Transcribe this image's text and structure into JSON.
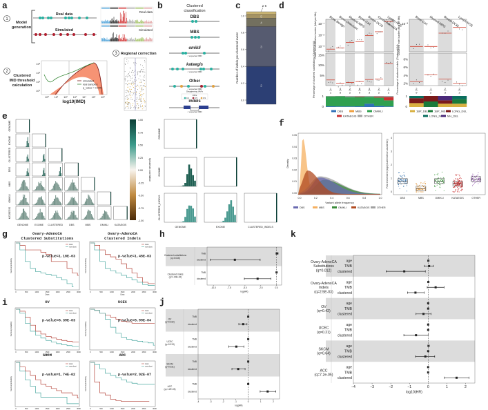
{
  "panel_labels": [
    "a",
    "b",
    "c",
    "d",
    "e",
    "f",
    "g",
    "h",
    "i",
    "j",
    "k"
  ],
  "colors": {
    "teal": "#2ab0a0",
    "red": "#b02030",
    "orange": "#f0a060",
    "gray_band": "#dcdcdc",
    "km_red": "#b5443a",
    "km_teal": "#4aa8a0"
  },
  "a": {
    "step1": "1",
    "step1_label": [
      "Model",
      "generation"
    ],
    "real_data": "Real data",
    "simulated": "Simulated",
    "step2": "2",
    "step2_label": [
      "Clustered",
      "IMD threshold",
      "calculation"
    ],
    "imd_xlabel": "log10(IMD)",
    "imd_xticks": [
      "10⁰",
      "10¹",
      "10²",
      "10³",
      "10⁴",
      "10⁵",
      "10⁶"
    ],
    "imd_yticks": [
      "10³",
      "10²",
      "10¹",
      "10⁰"
    ],
    "imd_legend": [
      "simulated",
      "real samples",
      "q_value = 0.005"
    ],
    "step3": "3",
    "step3_label": "Regional correction"
  },
  "b": {
    "title": [
      "Clustered",
      "classification"
    ],
    "items": [
      {
        "label": "DBS",
        "note": ""
      },
      {
        "label": "MBS",
        "note": ""
      },
      {
        "label": "omikli",
        "note": "< expected IMD"
      },
      {
        "label": "kataegis",
        "note": "< expected IMD"
      },
      {
        "label": "Other",
        "note": "< expected IMD",
        "note2": "Disagreeing VAFs"
      },
      {
        "label": "indels",
        "note": "< expected IMD"
      }
    ],
    "vaf_legend": {
      "title": "VAFs",
      "values": [
        "0.2",
        "0.5",
        "0.9"
      ]
    }
  },
  "c": {
    "ylabel": "Number of indels per clustered event",
    "yticks": [
      "1.0",
      "0.8",
      "0.6",
      "0.4",
      "0.2",
      "0.0"
    ],
    "segments": [
      {
        "label": "2",
        "fraction": 0.41,
        "color": "#2c3f74"
      },
      {
        "label": "3",
        "fraction": 0.43,
        "color": "#565b70"
      },
      {
        "label": "4",
        "fraction": 0.09,
        "color": "#73705f"
      },
      {
        "label": "5",
        "fraction": 0.04,
        "color": "#a59363"
      },
      {
        "label": "",
        "fraction": 0.03,
        "color": "#c9b473"
      }
    ],
    "top_label": "≥ 6"
  },
  "d": {
    "left": {
      "cancers": [
        "Bone-Benign",
        "Bone-Osteosarc",
        "Myeloid-MDS",
        "Bone-Cart",
        "Breast-DCIS",
        "Cervix-AdenoCA",
        "Lymph-NOS"
      ],
      "fractions": [
        [
          "1",
          "1"
        ],
        [
          "4",
          "5"
        ],
        [
          "2",
          "2"
        ],
        [
          "8",
          "9"
        ],
        [
          "3",
          "3"
        ],
        [
          "2",
          "2"
        ],
        [
          "2",
          "2"
        ]
      ],
      "burden_ylabel": "Clustered substitution burden (Mut per Mb)",
      "burden_yticks": [
        "10⁻¹",
        "10⁻²",
        "10⁻³"
      ],
      "burden_median": [
        0.0011,
        0.0014,
        0.0045,
        0.0055,
        0.02,
        0.045,
        0.4
      ],
      "pct_ylabel": "Percentage of clustered substitutions (Clustered/All)",
      "pct_yticks": [
        "15%",
        "10%",
        "5%"
      ],
      "pct_median": [
        2.8,
        1.2,
        1.5,
        2.0,
        3.0,
        3.2,
        10.8
      ],
      "stack_yticks": [
        "1",
        "0"
      ],
      "stack_classes": [
        "DBS",
        "MBS",
        "OMIKLI",
        "KATAEGIS",
        "OTHER"
      ],
      "stack_colors": [
        "#3070b8",
        "#f0a040",
        "#30a050",
        "#c83030",
        "#a0a0a0"
      ],
      "stack": [
        [
          0.06,
          0,
          0.9,
          0,
          0.04
        ],
        [
          0.05,
          0,
          0.92,
          0,
          0.03
        ],
        [
          0.05,
          0,
          0.85,
          0,
          0.1
        ],
        [
          0.06,
          0,
          0.84,
          0.04,
          0.06
        ],
        [
          0.3,
          0,
          0.62,
          0,
          0.08
        ],
        [
          0.1,
          0,
          0.75,
          0.08,
          0.07
        ],
        [
          0.05,
          0,
          0.55,
          0.3,
          0.1
        ]
      ]
    },
    "right": {
      "cancers": [
        "Bone-Cart",
        "Myeloid-MDS",
        "Breast-DCIS",
        "Lymph-NOS"
      ],
      "fractions": [
        [
          "2",
          "9"
        ],
        [
          "1",
          "2"
        ],
        [
          "2",
          "3"
        ],
        [
          "2",
          "2"
        ]
      ],
      "burden_ylabel": "Clustered indel burden (Mut per Mb)",
      "burden_yticks": [
        "10⁻³"
      ],
      "burden_median": [
        0.0006,
        0.0006,
        0.003,
        0.006
      ],
      "pct_ylabel": "Percentage of clustered indels (Clustered/All)",
      "pct_yticks": [
        "8%",
        "6%",
        "4%",
        "2%"
      ],
      "pct_median": [
        2.5,
        4.2,
        3.1,
        2.1
      ],
      "stack_yticks": [
        "1",
        "0"
      ],
      "stack_classes": [
        "1BP_DEL",
        "1BP_INS",
        "LONG_DEL",
        "LONG_INS",
        "MH_DEL"
      ],
      "stack_colors": [
        "#d8b040",
        "#1a7a3a",
        "#7a1a1a",
        "#0a6e5e",
        "#4a2a7a"
      ],
      "stack": [
        [
          0.35,
          0,
          0.45,
          0.2,
          0
        ],
        [
          0,
          0.5,
          0.5,
          0,
          0
        ],
        [
          0.3,
          0,
          0.3,
          0,
          0.4
        ],
        [
          0.3,
          0.4,
          0,
          0.3,
          0
        ]
      ]
    }
  },
  "e": {
    "labels": [
      "GENOME",
      "EXOME",
      "CLUSTERED",
      "DBS",
      "MBS",
      "OMIKLI",
      "KATAEGIS"
    ],
    "colorbar_ticks": [
      "1.00",
      "0.75",
      "0.50",
      "0.25",
      "0.00",
      "-0.25",
      "-0.50",
      "-0.75",
      "-1.00"
    ],
    "colorbar_label": "Spearman correlation",
    "right_labels": [
      "GENOME",
      "EXOME",
      "CLUSTERED_INDELS"
    ]
  },
  "f": {
    "density": {
      "xlabel": "Variant allele frequency",
      "ylabel": "Density",
      "xticks": [
        "0.0",
        "0.2",
        "0.4",
        "0.6",
        "0.8",
        "1.0"
      ],
      "yticks": [
        "0.05",
        "0.04",
        "0.03",
        "0.02",
        "0.01",
        "0.00"
      ],
      "classes": [
        "DBS",
        "MBS",
        "OMIKLI",
        "KATAEGIS",
        "OTHER"
      ],
      "colors": [
        "#6a6ab0",
        "#f5b060",
        "#3a8a3a",
        "#b04a20",
        "#a0a0a0"
      ]
    },
    "box": {
      "ylabel": "Fold enrichment (log2(clustered/non-clustered))",
      "yticks": [
        "4",
        "3",
        "2",
        "1",
        "0"
      ],
      "categories": [
        "DBS",
        "MBS",
        "OMIKLI",
        "KATAEGIS",
        "OTHER"
      ],
      "colors": [
        "#2a6aa8",
        "#e08a20",
        "#3a9a3a",
        "#c82a2a",
        "#8a4aa8"
      ],
      "medians": [
        0.85,
        0.3,
        0.85,
        0.65,
        1.0
      ]
    }
  },
  "km": {
    "times": [
      0,
      250,
      500,
      750,
      1000,
      1250,
      1500,
      1750,
      2000,
      2250,
      2500,
      2750,
      3000
    ],
    "xticks": [
      "0",
      "500",
      "1000",
      "1500",
      "2000",
      "2500",
      "3000"
    ],
    "ylabel": "Survival probability",
    "xlabel": "Days",
    "legend": [
      "clust",
      "non-clust"
    ],
    "plots": [
      {
        "title": [
          "Ovary-AdenoCA",
          "Clustered Substitutions"
        ],
        "pvalue": "p-value=1.18E-03",
        "red": [
          1,
          0.95,
          0.85,
          0.85,
          0.85,
          0.8,
          0.75,
          0.6,
          0.6,
          0.6,
          0.45,
          0.35,
          0.3
        ],
        "teal": [
          1,
          0.85,
          0.6,
          0.45,
          0.38,
          0.35,
          0.32,
          0.3,
          0.25,
          0.2,
          0.12,
          0.05,
          null
        ]
      },
      {
        "title": [
          "Ovary-AdenoCA",
          "Clustered Indels"
        ],
        "pvalue": "p-value=1.45E-03",
        "red": [
          1,
          0.95,
          0.85,
          0.75,
          0.7,
          0.65,
          0.55,
          0.45,
          0.35,
          0.25,
          0.15,
          0.12,
          0.12
        ],
        "teal": [
          1,
          0.85,
          0.6,
          0.45,
          0.4,
          0.35,
          0.3,
          0.25,
          0.2,
          0.15,
          0.1,
          0.08,
          0.08
        ]
      },
      {
        "title": [
          "OV"
        ],
        "pvalue": "p-value=6.39E-03",
        "red": [
          1,
          0.95,
          0.8,
          0.6,
          0.45,
          0.38,
          0.32,
          0.28,
          0.25,
          0.22,
          0.2,
          0.18,
          0.18
        ],
        "teal": [
          1,
          0.9,
          0.65,
          0.45,
          0.35,
          0.28,
          0.22,
          0.18,
          0.14,
          0.11,
          0.09,
          0.07,
          0.07
        ]
      },
      {
        "title": [
          "UCEC"
        ],
        "pvalue": "p-value=5.99E-04",
        "red": [
          1,
          0.97,
          0.9,
          0.85,
          0.8,
          0.75,
          0.7,
          0.68,
          0.65,
          0.65,
          0.65,
          0.65,
          0.65
        ],
        "teal": [
          1,
          0.97,
          0.9,
          0.75,
          0.55,
          0.4,
          0.3,
          0.25,
          0.22,
          0.2,
          0.18,
          0.16,
          0.1
        ]
      },
      {
        "title": [
          "SKCM"
        ],
        "pvalue": "p-value=1.74E-02",
        "red": [
          1,
          0.9,
          0.8,
          0.7,
          0.6,
          0.5,
          0.45,
          0.4,
          0.35,
          0.3,
          0.3,
          0.25,
          0.18
        ],
        "teal": [
          1,
          0.8,
          0.6,
          0.45,
          0.3,
          0.2,
          0.2,
          0.2,
          0.2,
          0.2,
          0.05,
          0.05,
          0.05
        ]
      },
      {
        "title": [
          "ACC"
        ],
        "pvalue": "p-value=2.92E-07",
        "red": [
          1,
          0.55,
          0.3,
          0.25,
          0.15,
          0.12,
          0.1,
          0.1,
          0.1,
          0.1,
          0.1,
          0.1,
          null
        ],
        "teal": [
          1,
          0.95,
          0.85,
          0.75,
          0.7,
          0.65,
          0.6,
          0.55,
          0.52,
          0.5,
          0.5,
          0.5,
          0.5
        ]
      }
    ]
  },
  "h": {
    "xlabel": "log(HR)",
    "xlim": [
      -11,
      0.8
    ],
    "xticks": [
      -10,
      -7.5,
      -5,
      -2.5,
      0
    ],
    "xtick_labels": [
      "-10.0",
      "-7.5",
      "-5.0",
      "-2.5",
      "0.0"
    ],
    "groups": [
      {
        "label": [
          "Clustered substitutions",
          "(q=0.016)"
        ],
        "rows": [
          {
            "name": "TMB",
            "hr": 0.05,
            "lo": -0.1,
            "hi": 0.25
          },
          {
            "name": "clustered",
            "hr": -6.6,
            "lo": -10.5,
            "hi": -2.6
          }
        ]
      },
      {
        "label": [
          "Clustered indels",
          "(q=1.00E-02)"
        ],
        "rows": [
          {
            "name": "TMB",
            "hr": 0.0,
            "lo": 0.0,
            "hi": 0.0
          },
          {
            "name": "clustered",
            "hr": -3.0,
            "lo": -5.1,
            "hi": -0.9
          }
        ]
      }
    ]
  },
  "j": {
    "xlabel": "log(HR)",
    "xlim": [
      -4,
      2.5
    ],
    "xticks": [
      -4,
      -3,
      -2,
      -1,
      0,
      1,
      2
    ],
    "xtick_labels": [
      "-4",
      "-3",
      "-2",
      "-1",
      "0",
      "1",
      "2"
    ],
    "groups": [
      {
        "label": [
          "OV",
          "(q=0.032)"
        ],
        "rows": [
          {
            "name": "TMB",
            "hr": 0,
            "lo": 0,
            "hi": 0
          },
          {
            "name": "clustered",
            "hr": -0.4,
            "lo": -0.75,
            "hi": -0.1
          }
        ]
      },
      {
        "label": [
          "UCEC",
          "(q=0.013)"
        ],
        "rows": [
          {
            "name": "TMB",
            "hr": 0,
            "lo": 0,
            "hi": 0
          },
          {
            "name": "clustered",
            "hr": -0.95,
            "lo": -1.55,
            "hi": -0.35
          }
        ]
      },
      {
        "label": [
          "SKCM",
          "(q=0.031)"
        ],
        "rows": [
          {
            "name": "TMB",
            "hr": 0,
            "lo": 0,
            "hi": 0
          },
          {
            "name": "clustered",
            "hr": -0.8,
            "lo": -1.3,
            "hi": -0.25
          }
        ]
      },
      {
        "label": [
          "ACC",
          "(q=1.2E-03)"
        ],
        "rows": [
          {
            "name": "TMB",
            "hr": 0,
            "lo": 0,
            "hi": 0
          },
          {
            "name": "clustered",
            "hr": 1.55,
            "lo": 0.95,
            "hi": 2.2
          }
        ]
      }
    ]
  },
  "k": {
    "xlabel": "log10(HR)",
    "xlim": [
      -4,
      2.5
    ],
    "xticks": [
      -4,
      -3,
      -2,
      -1,
      0,
      1,
      2
    ],
    "xtick_labels": [
      "−4",
      "−3",
      "−2",
      "−1",
      "0",
      "1",
      "2"
    ],
    "groups": [
      {
        "label": [
          "Ovary-AdenoCA",
          "Substitutions",
          "(q=0.012)"
        ],
        "rows": [
          {
            "name": "age",
            "hr": 0.01,
            "lo": 0,
            "hi": 0.02
          },
          {
            "name": "TMB",
            "hr": 0.05,
            "lo": -0.2,
            "hi": 0.28
          },
          {
            "name": "clustered",
            "hr": -1.28,
            "lo": -2.25,
            "hi": -0.15
          }
        ]
      },
      {
        "label": [
          "Ovary-AdenoCA",
          "Indels",
          "(q=2.5E-03)"
        ],
        "rows": [
          {
            "name": "age",
            "hr": 0.01,
            "lo": 0,
            "hi": 0.02
          },
          {
            "name": "TMB",
            "hr": 0.4,
            "lo": -0.05,
            "hi": 0.85
          },
          {
            "name": "clustered",
            "hr": -0.68,
            "lo": -1.1,
            "hi": -0.22
          }
        ]
      },
      {
        "label": [
          "OV",
          "(q=0.42)"
        ],
        "rows": [
          {
            "name": "age",
            "hr": 0,
            "lo": 0,
            "hi": 0
          },
          {
            "name": "TMB",
            "hr": 0,
            "lo": 0,
            "hi": 0
          },
          {
            "name": "clustered",
            "hr": -0.25,
            "lo": -0.65,
            "hi": 0.15
          }
        ]
      },
      {
        "label": [
          "UCEC",
          "(q=0.21)"
        ],
        "rows": [
          {
            "name": "age",
            "hr": 0,
            "lo": 0,
            "hi": 0
          },
          {
            "name": "TMB",
            "hr": 0,
            "lo": 0,
            "hi": 0
          },
          {
            "name": "clustered",
            "hr": -0.65,
            "lo": -1.3,
            "hi": 0.0
          }
        ]
      },
      {
        "label": [
          "SKCM",
          "(q=0.64)"
        ],
        "rows": [
          {
            "name": "age",
            "hr": 0.02,
            "lo": 0.01,
            "hi": 0.03
          },
          {
            "name": "TMB",
            "hr": 0,
            "lo": 0,
            "hi": 0
          },
          {
            "name": "clustered",
            "hr": -0.15,
            "lo": -0.68,
            "hi": 0.35
          }
        ]
      },
      {
        "label": [
          "ACC",
          "(q=7.2e-05)"
        ],
        "rows": [
          {
            "name": "age",
            "hr": 0,
            "lo": 0,
            "hi": 0
          },
          {
            "name": "TMB",
            "hr": 0,
            "lo": 0,
            "hi": 0
          },
          {
            "name": "clustered",
            "hr": 1.52,
            "lo": 0.87,
            "hi": 2.18
          }
        ]
      }
    ]
  }
}
